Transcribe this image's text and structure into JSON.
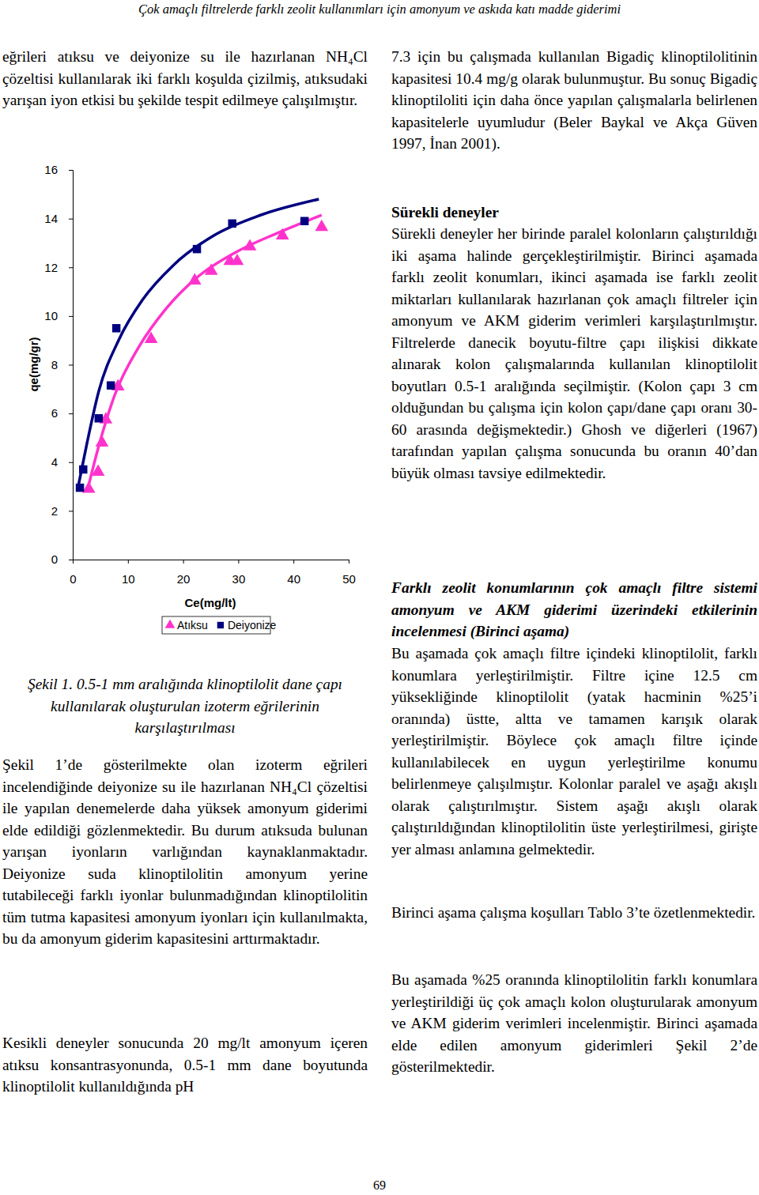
{
  "header": "Çok amaçlı filtrelerde farklı zeolit kullanımları için amonyum ve askıda katı madde giderimi",
  "left_paragraphs": [
    "eğrileri atıksu ve deiyonize su ile hazırlanan NH₄Cl çözeltisi kullanılarak iki farklı koşulda çizilmiş, atıksudaki yarışan iyon etkisi bu şekilde tespit edilmeye çalışılmıştır.",
    "Şekil 1’de gösterilmekte olan izoterm eğrileri incelendiğinde deiyonize su ile hazırlanan NH₄Cl çözeltisi ile yapılan denemelerde daha yüksek amonyum giderimi elde edildiği gözlenmektedir. Bu durum atıksuda bulunan yarışan iyonların varlığından kaynaklanmaktadır. Deiyonize suda klinoptilolitin amonyum yerine tutabileceği farklı iyonlar bulunmadığından klinoptilolitin tüm tutma kapasitesi amonyum iyonları için kullanılmakta, bu da amonyum giderim kapasitesini arttırmaktadır.",
    "Kesikli deneyler sonucunda 20 mg/lt amonyum içeren atıksu konsantrasyonunda, 0.5-1 mm dane boyutunda klinoptilolit kullanıldığında pH"
  ],
  "figure_caption": "Şekil 1. 0.5-1 mm aralığında klinoptilolit dane çapı kullanılarak oluşturulan izoterm eğrilerinin karşılaştırılması",
  "right_blocks": [
    {
      "kind": "paragraph",
      "text": "7.3 için bu çalışmada kullanılan Bigadiç klinoptilolitinin kapasitesi 10.4 mg/g olarak bulunmuştur. Bu sonuç Bigadiç klinoptiloliti için daha önce yapılan çalışmalarla belirlenen kapasitelerle uyumludur (Beler Baykal ve Akça Güven 1997, İnan 2001)."
    },
    {
      "kind": "heading",
      "text": "Sürekli deneyler"
    },
    {
      "kind": "paragraph",
      "text": "Sürekli deneyler her birinde paralel kolonların çalıştırıldığı iki aşama halinde gerçekleştirilmiştir. Birinci aşamada farklı zeolit konumları, ikinci aşamada ise farklı zeolit miktarları kullanılarak hazırlanan çok amaçlı filtreler için amonyum ve AKM giderim verimleri karşılaştırılmıştır. Filtrelerde danecik boyutu-filtre çapı ilişkisi dikkate alınarak kolon çalışmalarında kullanılan klinoptilolit boyutları 0.5-1 aralığında seçilmiştir. (Kolon çapı 3 cm olduğundan bu çalışma için kolon çapı/dane çapı oranı 30-60 arasında değişmektedir.) Ghosh ve diğerleri (1967) tarafından yapılan çalışma sonucunda bu oranın 40’dan büyük olması tavsiye edilmektedir."
    },
    {
      "kind": "subheading",
      "text": "Farklı zeolit konumlarının çok amaçlı filtre sistemi amonyum ve AKM giderimi üzerindeki etkilerinin incelenmesi (Birinci aşama)"
    },
    {
      "kind": "paragraph",
      "text": "Bu aşamada çok amaçlı filtre içindeki klinoptilolit, farklı konumlara yerleştirilmiştir. Filtre içine 12.5 cm yüksekliğinde klinoptilolit (yatak hacminin %25’i oranında) üstte, altta ve tamamen karışık olarak yerleştirilmiştir. Böylece çok amaçlı filtre içinde kullanılabilecek en uygun yerleştirilme konumu belirlenmeye çalışılmıştır. Kolonlar paralel ve aşağı akışlı olarak çalıştırılmıştır. Sistem aşağı akışlı olarak çalıştırıldığından klinoptilolitin üste yerleştirilmesi, girişte yer alması anlamına gelmektedir."
    },
    {
      "kind": "paragraph",
      "text": "Birinci aşama çalışma koşulları Tablo 3’te özetlenmektedir."
    },
    {
      "kind": "paragraph",
      "text": "Bu aşamada %25 oranında klinoptilolitin farklı konumlara yerleştirildiği üç çok amaçlı kolon oluşturularak amonyum ve AKM giderim verimleri incelenmiştir. Birinci aşamada elde edilen amonyum giderimleri Şekil 2’de gösterilmektedir."
    }
  ],
  "page_number": "69",
  "chart_data": {
    "type": "scatter",
    "x_label": "Ce(mg/lt)",
    "y_label": "qe(mg/gr)",
    "xlim": [
      0,
      50
    ],
    "ylim": [
      0,
      16
    ],
    "xticks": [
      0,
      10,
      20,
      30,
      40,
      50
    ],
    "yticks": [
      0,
      2,
      4,
      6,
      8,
      10,
      12,
      14,
      16
    ],
    "legend": "bottom",
    "series": [
      {
        "name": "Atıksu",
        "color": "#ff33cc",
        "marker": "triangle",
        "x": [
          2.9,
          4.6,
          5.3,
          6.0,
          8.2,
          14.2,
          22.1,
          25.1,
          28.5,
          29.8,
          32.1,
          38.0,
          45.1
        ],
        "values": [
          2.9,
          3.6,
          4.8,
          5.75,
          7.1,
          9.05,
          11.45,
          11.85,
          12.25,
          12.25,
          12.85,
          13.3,
          13.65
        ],
        "trend_x": [
          2.6,
          4.7,
          7.6,
          11.9,
          16.9,
          22.6,
          29.8,
          37.0,
          45.1
        ],
        "trend_values": [
          2.8,
          4.65,
          6.75,
          8.7,
          10.3,
          11.6,
          12.65,
          13.4,
          14.15
        ]
      },
      {
        "name": "Deiyonize",
        "color": "#000080",
        "marker": "square",
        "x": [
          1.3,
          1.9,
          4.7,
          6.9,
          7.9,
          22.5,
          28.9,
          42.0
        ],
        "values": [
          2.95,
          3.7,
          5.8,
          7.15,
          9.5,
          12.75,
          13.8,
          13.9
        ],
        "trend_x": [
          0.9,
          2.6,
          4.7,
          8.3,
          12.6,
          18.3,
          25.5,
          34.1,
          44.6
        ],
        "trend_values": [
          2.9,
          4.8,
          6.9,
          9.0,
          10.65,
          12.1,
          13.3,
          14.15,
          14.8
        ]
      }
    ]
  }
}
